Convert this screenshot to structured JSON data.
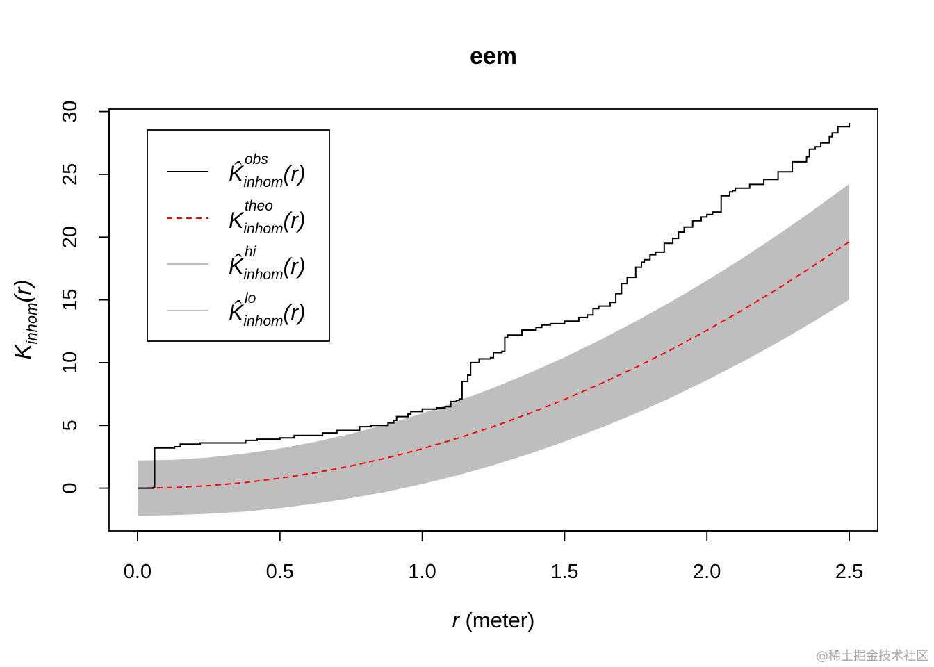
{
  "chart_data": {
    "type": "line",
    "title": "eem",
    "xlabel": {
      "var": "r",
      "unit": " (meter)"
    },
    "ylabel": {
      "base": "K",
      "sub": "inhom",
      "arg": "(r)"
    },
    "xlim": [
      -0.1,
      2.6
    ],
    "ylim": [
      -3.4,
      30.2
    ],
    "x_ticks": [
      0.0,
      0.5,
      1.0,
      1.5,
      2.0,
      2.5
    ],
    "x_tick_labels": [
      "0.0",
      "0.5",
      "1.0",
      "1.5",
      "2.0",
      "2.5"
    ],
    "y_ticks": [
      0,
      5,
      10,
      15,
      20,
      25,
      30
    ],
    "y_tick_labels": [
      "0",
      "5",
      "10",
      "15",
      "20",
      "25",
      "30"
    ],
    "legend": {
      "position": "top-left",
      "entries": [
        {
          "base": "K̂",
          "sup": "obs",
          "sub": "inhom",
          "arg": "(r)",
          "color": "#000000",
          "style": "solid"
        },
        {
          "base": "K",
          "sup": "theo",
          "sub": "inhom",
          "arg": "(r)",
          "color": "#ff0000",
          "style": "dashed"
        },
        {
          "base": "K̂",
          "sup": "hi",
          "sub": "inhom",
          "arg": "(r)",
          "color": "#bebebe",
          "style": "solid"
        },
        {
          "base": "K̂",
          "sup": "lo",
          "sub": "inhom",
          "arg": "(r)",
          "color": "#bebebe",
          "style": "solid"
        }
      ]
    },
    "series": [
      {
        "name": "obs",
        "color": "#000000",
        "style": "step",
        "x": [
          0.0,
          0.05,
          0.055,
          0.06,
          0.13,
          0.15,
          0.22,
          0.25,
          0.38,
          0.42,
          0.5,
          0.55,
          0.65,
          0.7,
          0.78,
          0.82,
          0.88,
          0.9,
          0.91,
          0.95,
          0.96,
          1.0,
          1.05,
          1.08,
          1.1,
          1.12,
          1.13,
          1.14,
          1.16,
          1.17,
          1.2,
          1.24,
          1.25,
          1.28,
          1.29,
          1.3,
          1.35,
          1.4,
          1.42,
          1.45,
          1.5,
          1.55,
          1.58,
          1.6,
          1.62,
          1.66,
          1.68,
          1.7,
          1.72,
          1.75,
          1.77,
          1.78,
          1.8,
          1.82,
          1.85,
          1.88,
          1.9,
          1.92,
          1.95,
          1.98,
          2.0,
          2.02,
          2.05,
          2.08,
          2.09,
          2.1,
          2.15,
          2.2,
          2.25,
          2.3,
          2.35,
          2.36,
          2.38,
          2.4,
          2.43,
          2.44,
          2.46,
          2.5
        ],
        "y": [
          0.0,
          0.0,
          0.05,
          3.2,
          3.3,
          3.5,
          3.6,
          3.6,
          3.8,
          3.9,
          4.0,
          4.2,
          4.4,
          4.6,
          4.9,
          5.0,
          5.2,
          5.4,
          5.7,
          5.9,
          6.1,
          6.3,
          6.4,
          6.5,
          6.9,
          7.0,
          7.1,
          8.5,
          9.0,
          10.0,
          10.3,
          10.4,
          10.8,
          10.9,
          12.0,
          12.2,
          12.6,
          12.8,
          13.0,
          13.1,
          13.3,
          13.6,
          13.8,
          14.3,
          14.5,
          14.8,
          15.5,
          16.3,
          16.8,
          17.6,
          18.0,
          18.2,
          18.6,
          18.8,
          19.5,
          19.9,
          20.4,
          20.8,
          21.3,
          21.6,
          21.8,
          22.0,
          23.3,
          23.6,
          23.7,
          23.9,
          24.2,
          24.6,
          25.2,
          26.0,
          26.4,
          27.0,
          27.2,
          27.5,
          28.0,
          28.3,
          28.8,
          29.1
        ]
      },
      {
        "name": "theo",
        "color": "#ff0000",
        "style": "dashed",
        "x": [
          0.0,
          0.125,
          0.25,
          0.375,
          0.5,
          0.625,
          0.75,
          0.875,
          1.0,
          1.125,
          1.25,
          1.375,
          1.5,
          1.625,
          1.75,
          1.875,
          2.0,
          2.125,
          2.25,
          2.375,
          2.5
        ],
        "y": [
          0.0,
          0.05,
          0.2,
          0.44,
          0.79,
          1.23,
          1.77,
          2.4,
          3.14,
          3.98,
          4.91,
          5.94,
          7.07,
          8.3,
          9.62,
          11.04,
          12.57,
          14.19,
          15.9,
          17.72,
          19.63
        ]
      },
      {
        "name": "hi",
        "color": "#bebebe",
        "style": "band-upper",
        "x": [
          0.0,
          0.125,
          0.25,
          0.375,
          0.5,
          0.625,
          0.75,
          0.875,
          1.0,
          1.125,
          1.25,
          1.375,
          1.5,
          1.625,
          1.75,
          1.875,
          2.0,
          2.125,
          2.25,
          2.375,
          2.5
        ],
        "y": [
          2.2,
          2.25,
          2.44,
          2.75,
          3.16,
          3.69,
          4.34,
          5.09,
          5.95,
          6.93,
          7.99,
          9.16,
          10.43,
          11.81,
          13.29,
          14.86,
          16.54,
          18.31,
          20.19,
          22.17,
          24.24
        ]
      },
      {
        "name": "lo",
        "color": "#bebebe",
        "style": "band-lower",
        "x": [
          0.0,
          0.125,
          0.25,
          0.375,
          0.5,
          0.625,
          0.75,
          0.875,
          1.0,
          1.125,
          1.25,
          1.375,
          1.5,
          1.625,
          1.75,
          1.875,
          2.0,
          2.125,
          2.25,
          2.375,
          2.5
        ],
        "y": [
          -2.2,
          -2.15,
          -2.04,
          -1.87,
          -1.58,
          -1.23,
          -0.8,
          -0.29,
          0.33,
          1.03,
          1.83,
          2.72,
          3.71,
          4.79,
          5.95,
          7.22,
          8.6,
          10.07,
          11.61,
          13.27,
          15.02
        ]
      }
    ]
  },
  "watermark": "@稀土掘金技术社区"
}
